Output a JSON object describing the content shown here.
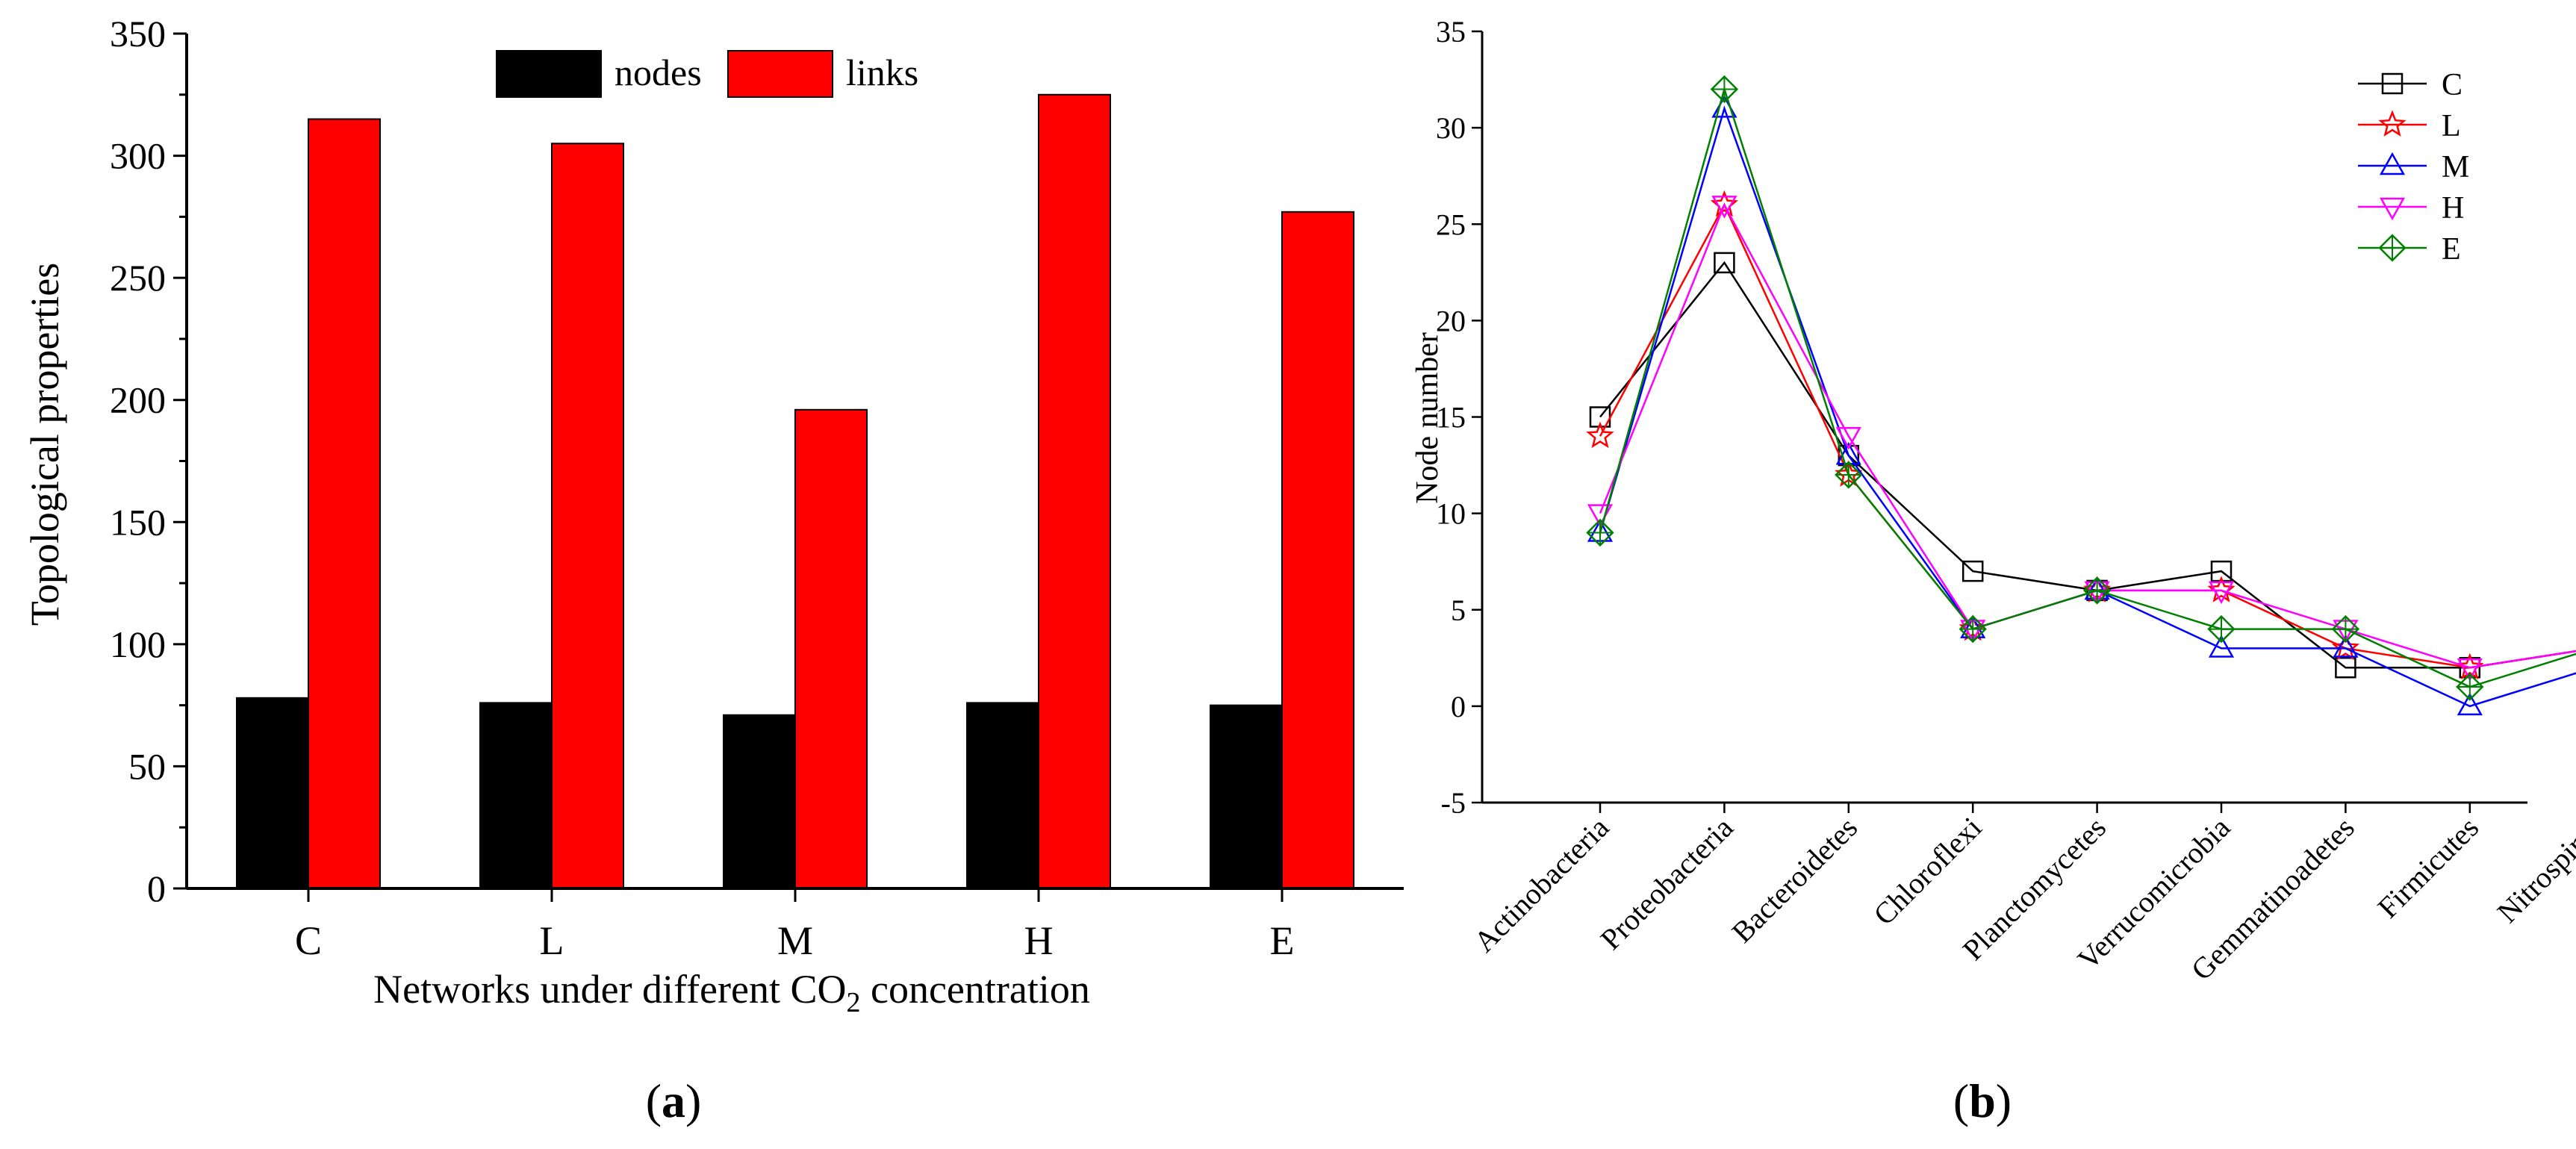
{
  "chart_data": [
    {
      "id": "a",
      "type": "bar",
      "panel_label": "a",
      "title": "",
      "xlabel": "Networks under different CO",
      "xlabel_sub": "2",
      "xlabel_suffix": " concentration",
      "ylabel": "Topological properties",
      "ylim": [
        0,
        350
      ],
      "yticks": [
        0,
        50,
        100,
        150,
        200,
        250,
        300,
        350
      ],
      "categories": [
        "C",
        "L",
        "M",
        "H",
        "E"
      ],
      "series": [
        {
          "name": "nodes",
          "color": "#000000",
          "values": [
            78,
            76,
            71,
            76,
            75
          ]
        },
        {
          "name": "links",
          "color": "#ff0000",
          "values": [
            315,
            305,
            196,
            325,
            277
          ]
        }
      ],
      "legend_position": "top-center",
      "grid": false
    },
    {
      "id": "b",
      "type": "line",
      "panel_label": "b",
      "title": "",
      "xlabel": "",
      "ylabel": "Node number",
      "ylim": [
        -5,
        35
      ],
      "yticks": [
        -5,
        0,
        5,
        10,
        15,
        20,
        25,
        30,
        35
      ],
      "categories": [
        "Actinobacteria",
        "Proteobacteria",
        "Bacteroidetes",
        "Chloroflexi",
        "Planctomycetes",
        "Verrucomicrobia",
        "Gemmatinoadetes",
        "Firmicutes",
        "Nitrospirae"
      ],
      "series": [
        {
          "name": "C",
          "color": "#000000",
          "marker": "square",
          "values": [
            15,
            23,
            13,
            7,
            6,
            7,
            2,
            2,
            3
          ]
        },
        {
          "name": "L",
          "color": "#ff0000",
          "marker": "star",
          "values": [
            14,
            26,
            12,
            4,
            6,
            6,
            3,
            2,
            3
          ]
        },
        {
          "name": "M",
          "color": "#0000ff",
          "marker": "triangle-up",
          "values": [
            9,
            31,
            13,
            4,
            6,
            3,
            3,
            0,
            2
          ]
        },
        {
          "name": "H",
          "color": "#ff00ff",
          "marker": "triangle-down",
          "values": [
            10,
            26,
            14,
            4,
            6,
            6,
            4,
            2,
            3
          ]
        },
        {
          "name": "E",
          "color": "#008000",
          "marker": "diamond",
          "values": [
            9,
            32,
            12,
            4,
            6,
            4,
            4,
            1,
            3
          ]
        }
      ],
      "legend_position": "top-right",
      "grid": false
    }
  ]
}
